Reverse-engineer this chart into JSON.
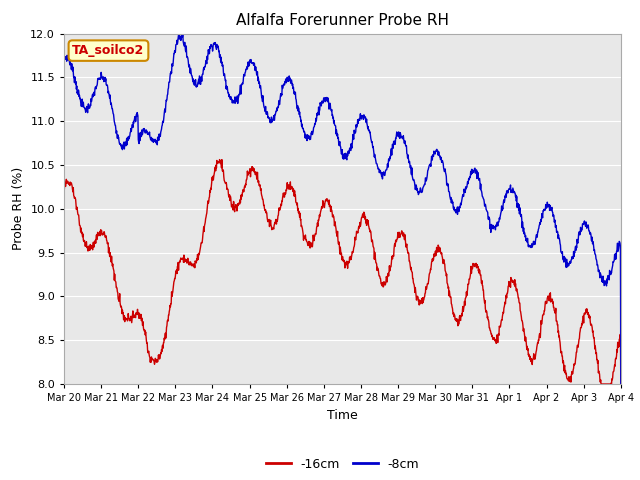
{
  "title": "Alfalfa Forerunner Probe RH",
  "ylabel": "Probe RH (%)",
  "xlabel": "Time",
  "legend_label": "TA_soilco2",
  "ylim": [
    8.0,
    12.0
  ],
  "yticks": [
    8.0,
    8.5,
    9.0,
    9.5,
    10.0,
    10.5,
    11.0,
    11.5,
    12.0
  ],
  "line1_label": "-16cm",
  "line2_label": "-8cm",
  "line1_color": "#cc0000",
  "line2_color": "#0000cc",
  "bg_color": "#e8e8e8",
  "legend_box_facecolor": "#ffffcc",
  "legend_box_edgecolor": "#cc8800",
  "legend_text_color": "#cc0000",
  "x_tick_labels": [
    "Mar 20",
    "Mar 21",
    "Mar 22",
    "Mar 23",
    "Mar 24",
    "Mar 25",
    "Mar 26",
    "Mar 27",
    "Mar 28",
    "Mar 29",
    "Mar 30",
    "Mar 31",
    "Apr 1",
    "Apr 2",
    "Apr 3",
    "Apr 4"
  ]
}
